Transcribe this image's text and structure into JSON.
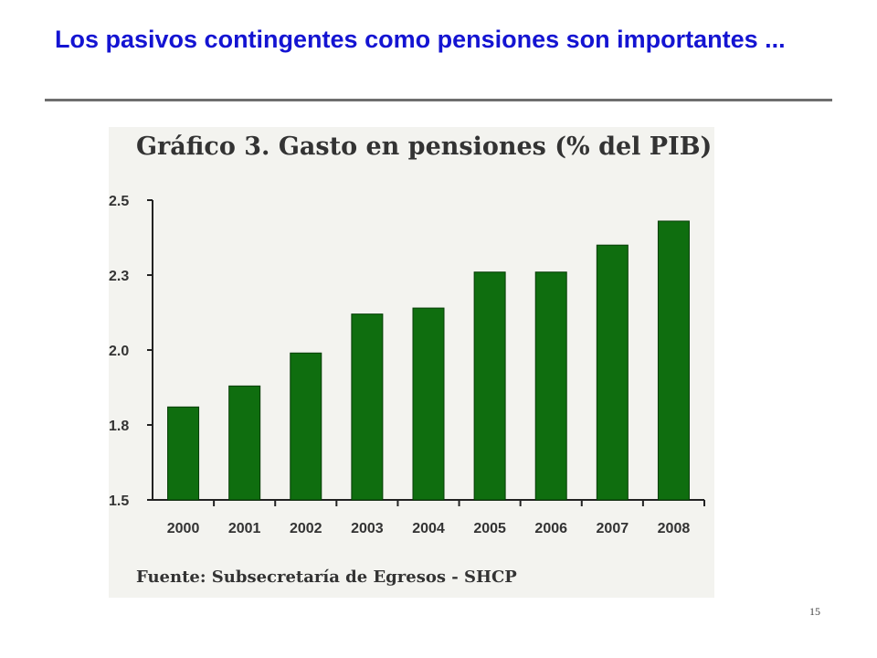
{
  "slide": {
    "title": "Los pasivos contingentes como pensiones son importantes ...",
    "page_number": "15",
    "title_color": "#1414d2"
  },
  "chart_data": {
    "type": "bar",
    "title": "Gráfico 3. Gasto en pensiones (% del PIB)",
    "source": "Fuente: Subsecretaría de Egresos - SHCP",
    "categories": [
      "2000",
      "2001",
      "2002",
      "2003",
      "2004",
      "2005",
      "2006",
      "2007",
      "2008"
    ],
    "values": [
      1.81,
      1.88,
      1.99,
      2.12,
      2.14,
      2.26,
      2.26,
      2.35,
      2.43
    ],
    "ylim": [
      1.5,
      2.5
    ],
    "y_tick_labels": [
      {
        "value": 1.5,
        "label": "1.5"
      },
      {
        "value": 1.75,
        "label": "1.8"
      },
      {
        "value": 2.0,
        "label": "2.0"
      },
      {
        "value": 2.25,
        "label": "2.3"
      },
      {
        "value": 2.5,
        "label": "2.5"
      }
    ],
    "xlabel": "",
    "ylabel": "",
    "grid": false,
    "bar_color": "#0f6e0f"
  }
}
